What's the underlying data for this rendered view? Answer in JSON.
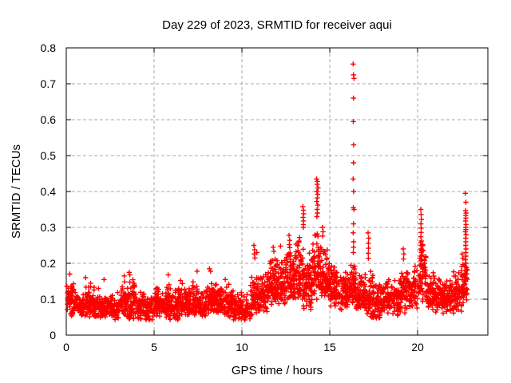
{
  "window": {
    "background": "#ffffff",
    "foreground": "#000000"
  },
  "chart_data": {
    "type": "scatter",
    "title": "Day 229 of 2023, SRMTID for receiver aqui",
    "xlabel": "GPS time / hours",
    "ylabel": "SRMTID / TECUs",
    "xlim": [
      0,
      24
    ],
    "ylim": [
      0,
      0.8
    ],
    "xticks": [
      0,
      5,
      10,
      15,
      20
    ],
    "yticks": [
      0,
      0.1,
      0.2,
      0.3,
      0.4,
      0.5,
      0.6,
      0.7,
      0.8
    ],
    "grid": true,
    "legend": "none",
    "marker": "plus",
    "marker_color": "#ff0000",
    "grid_color": "#aaaaaa",
    "axis_color": "#000000",
    "seed": 229,
    "x_data_range": [
      0.0,
      22.85
    ],
    "band_bins_note": "dense scatter band: [x_start_hr, x_end_hr, y_min_TECU, y_max_TECU, n_points]",
    "band_bins": [
      [
        0.0,
        0.5,
        0.05,
        0.16,
        55
      ],
      [
        0.5,
        1.0,
        0.05,
        0.13,
        55
      ],
      [
        1.0,
        1.5,
        0.05,
        0.15,
        60
      ],
      [
        1.5,
        2.0,
        0.04,
        0.14,
        60
      ],
      [
        2.0,
        2.5,
        0.05,
        0.12,
        55
      ],
      [
        2.5,
        3.0,
        0.04,
        0.13,
        55
      ],
      [
        3.0,
        3.5,
        0.05,
        0.15,
        60
      ],
      [
        3.5,
        4.0,
        0.04,
        0.16,
        60
      ],
      [
        4.0,
        4.5,
        0.04,
        0.13,
        55
      ],
      [
        4.5,
        5.0,
        0.04,
        0.11,
        50
      ],
      [
        5.0,
        5.5,
        0.05,
        0.14,
        60
      ],
      [
        5.5,
        6.0,
        0.04,
        0.15,
        60
      ],
      [
        6.0,
        6.5,
        0.04,
        0.14,
        60
      ],
      [
        6.5,
        7.0,
        0.05,
        0.15,
        60
      ],
      [
        7.0,
        7.5,
        0.05,
        0.16,
        60
      ],
      [
        7.5,
        8.0,
        0.05,
        0.13,
        55
      ],
      [
        8.0,
        8.5,
        0.06,
        0.16,
        60
      ],
      [
        8.5,
        9.0,
        0.06,
        0.15,
        55
      ],
      [
        9.0,
        9.5,
        0.05,
        0.15,
        55
      ],
      [
        9.5,
        10.0,
        0.04,
        0.13,
        55
      ],
      [
        10.0,
        10.5,
        0.03,
        0.12,
        50
      ],
      [
        10.5,
        11.0,
        0.05,
        0.18,
        60
      ],
      [
        11.0,
        11.5,
        0.06,
        0.2,
        65
      ],
      [
        11.5,
        12.0,
        0.08,
        0.23,
        70
      ],
      [
        12.0,
        12.5,
        0.08,
        0.22,
        70
      ],
      [
        12.5,
        13.0,
        0.09,
        0.25,
        70
      ],
      [
        13.0,
        13.5,
        0.09,
        0.29,
        70
      ],
      [
        13.5,
        14.0,
        0.07,
        0.25,
        70
      ],
      [
        14.0,
        14.5,
        0.09,
        0.31,
        70
      ],
      [
        14.5,
        15.0,
        0.09,
        0.25,
        70
      ],
      [
        15.0,
        15.5,
        0.08,
        0.2,
        65
      ],
      [
        15.5,
        16.0,
        0.07,
        0.18,
        60
      ],
      [
        16.0,
        16.5,
        0.08,
        0.21,
        65
      ],
      [
        16.5,
        17.0,
        0.07,
        0.18,
        60
      ],
      [
        17.0,
        17.5,
        0.04,
        0.19,
        55
      ],
      [
        17.5,
        18.0,
        0.04,
        0.16,
        55
      ],
      [
        18.0,
        18.5,
        0.06,
        0.17,
        60
      ],
      [
        18.5,
        19.0,
        0.05,
        0.16,
        55
      ],
      [
        19.0,
        19.5,
        0.06,
        0.19,
        60
      ],
      [
        19.5,
        20.0,
        0.07,
        0.22,
        60
      ],
      [
        20.0,
        20.5,
        0.08,
        0.28,
        60
      ],
      [
        20.5,
        21.0,
        0.07,
        0.18,
        60
      ],
      [
        21.0,
        21.5,
        0.06,
        0.16,
        60
      ],
      [
        21.5,
        22.0,
        0.06,
        0.17,
        60
      ],
      [
        22.0,
        22.5,
        0.06,
        0.19,
        60
      ],
      [
        22.5,
        22.85,
        0.08,
        0.24,
        45
      ]
    ],
    "spike_points_note": "individually readable outlier points [hr, TECU]",
    "spike_points": [
      [
        16.33,
        0.755
      ],
      [
        16.35,
        0.725
      ],
      [
        16.38,
        0.715
      ],
      [
        16.35,
        0.66
      ],
      [
        16.34,
        0.595
      ],
      [
        16.36,
        0.53
      ],
      [
        16.35,
        0.48
      ],
      [
        16.33,
        0.435
      ],
      [
        16.36,
        0.4
      ],
      [
        16.34,
        0.355
      ],
      [
        16.38,
        0.35
      ],
      [
        16.35,
        0.31
      ],
      [
        16.33,
        0.285
      ],
      [
        16.36,
        0.26
      ],
      [
        16.35,
        0.245
      ],
      [
        16.34,
        0.23
      ],
      [
        14.25,
        0.435
      ],
      [
        14.3,
        0.428
      ],
      [
        14.28,
        0.42
      ],
      [
        14.33,
        0.41
      ],
      [
        14.27,
        0.4
      ],
      [
        14.31,
        0.392
      ],
      [
        14.29,
        0.382
      ],
      [
        14.26,
        0.372
      ],
      [
        14.32,
        0.362
      ],
      [
        14.28,
        0.35
      ],
      [
        14.3,
        0.34
      ],
      [
        14.27,
        0.33
      ],
      [
        13.47,
        0.358
      ],
      [
        13.5,
        0.348
      ],
      [
        13.52,
        0.338
      ],
      [
        13.48,
        0.328
      ],
      [
        13.51,
        0.318
      ],
      [
        13.5,
        0.308
      ],
      [
        13.49,
        0.3
      ],
      [
        14.58,
        0.3
      ],
      [
        14.62,
        0.288
      ],
      [
        14.6,
        0.276
      ],
      [
        12.68,
        0.278
      ],
      [
        12.72,
        0.264
      ],
      [
        12.7,
        0.252
      ],
      [
        12.2,
        0.248
      ],
      [
        11.78,
        0.245
      ],
      [
        11.82,
        0.233
      ],
      [
        10.68,
        0.25
      ],
      [
        10.72,
        0.238
      ],
      [
        10.7,
        0.226
      ],
      [
        10.74,
        0.215
      ],
      [
        10.85,
        0.23
      ],
      [
        17.18,
        0.285
      ],
      [
        17.22,
        0.27
      ],
      [
        17.2,
        0.256
      ],
      [
        17.21,
        0.242
      ],
      [
        17.19,
        0.228
      ],
      [
        17.2,
        0.214
      ],
      [
        19.18,
        0.24
      ],
      [
        19.22,
        0.226
      ],
      [
        19.2,
        0.212
      ],
      [
        20.18,
        0.35
      ],
      [
        20.2,
        0.336
      ],
      [
        20.22,
        0.322
      ],
      [
        20.19,
        0.31
      ],
      [
        20.21,
        0.298
      ],
      [
        20.2,
        0.286
      ],
      [
        20.18,
        0.274
      ],
      [
        20.22,
        0.262
      ],
      [
        20.2,
        0.25
      ],
      [
        20.19,
        0.24
      ],
      [
        20.21,
        0.23
      ],
      [
        20.2,
        0.22
      ],
      [
        20.3,
        0.252
      ],
      [
        20.32,
        0.236
      ],
      [
        22.72,
        0.395
      ],
      [
        22.75,
        0.37
      ],
      [
        22.73,
        0.347
      ],
      [
        22.76,
        0.34
      ],
      [
        22.74,
        0.333
      ],
      [
        22.75,
        0.326
      ],
      [
        22.73,
        0.318
      ],
      [
        22.76,
        0.308
      ],
      [
        22.74,
        0.3
      ],
      [
        22.75,
        0.294
      ],
      [
        22.72,
        0.288
      ],
      [
        22.76,
        0.28
      ],
      [
        22.74,
        0.27
      ],
      [
        22.75,
        0.26
      ],
      [
        22.73,
        0.25
      ],
      [
        22.76,
        0.24
      ],
      [
        22.74,
        0.23
      ],
      [
        22.75,
        0.22
      ],
      [
        22.72,
        0.21
      ],
      [
        22.76,
        0.2
      ],
      [
        22.74,
        0.19
      ],
      [
        22.75,
        0.18
      ],
      [
        22.73,
        0.17
      ],
      [
        22.76,
        0.16
      ],
      [
        22.74,
        0.15
      ],
      [
        8.15,
        0.185
      ],
      [
        8.22,
        0.178
      ],
      [
        5.8,
        0.168
      ],
      [
        7.45,
        0.178
      ],
      [
        9.05,
        0.155
      ],
      [
        3.58,
        0.175
      ],
      [
        3.62,
        0.168
      ],
      [
        3.3,
        0.165
      ],
      [
        0.2,
        0.17
      ],
      [
        1.1,
        0.16
      ],
      [
        2.15,
        0.155
      ],
      [
        6.5,
        0.152
      ]
    ]
  }
}
